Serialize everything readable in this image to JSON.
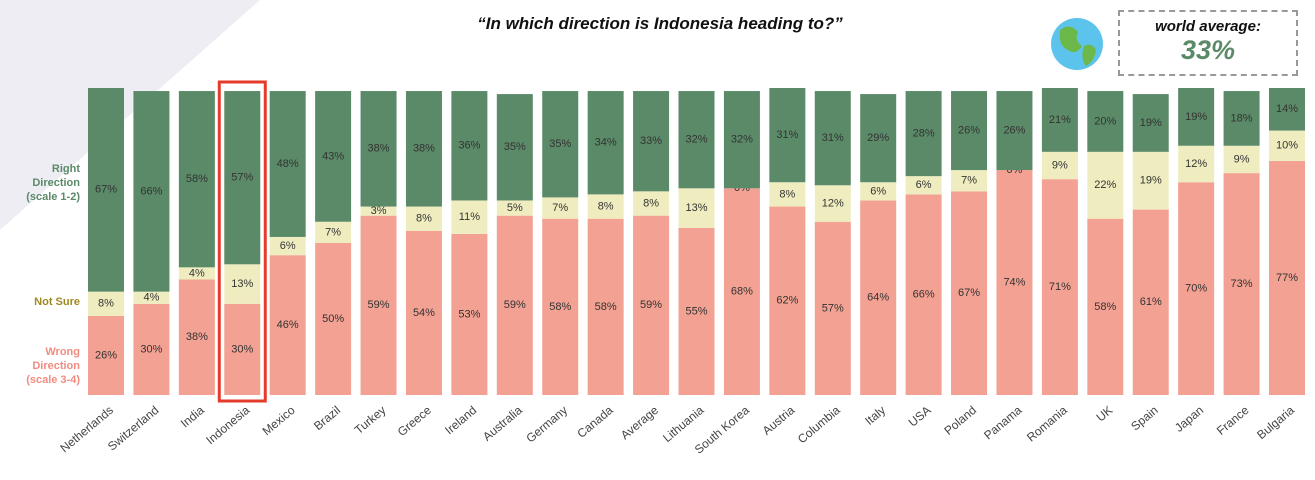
{
  "chart_data": {
    "type": "stacked_bar",
    "title": "“In which direction is Indonesia heading to?”",
    "annotation": {
      "label": "world average:",
      "value": "33%"
    },
    "highlight_category": "Indonesia",
    "categories": [
      "Netherlands",
      "Switzerland",
      "India",
      "Indonesia",
      "Mexico",
      "Brazil",
      "Turkey",
      "Greece",
      "Ireland",
      "Australia",
      "Germany",
      "Canada",
      "Average",
      "Lithuania",
      "South Korea",
      "Austria",
      "Columbia",
      "Italy",
      "USA",
      "Poland",
      "Panama",
      "Romania",
      "UK",
      "Spain",
      "Japan",
      "France",
      "Bulgaria"
    ],
    "series": [
      {
        "name": "Right Direction (scale 1-2)",
        "color": "#5b8a68",
        "values": [
          67,
          66,
          58,
          57,
          48,
          43,
          38,
          38,
          36,
          35,
          35,
          34,
          33,
          32,
          32,
          31,
          31,
          29,
          28,
          26,
          26,
          21,
          20,
          19,
          19,
          18,
          14
        ],
        "value_labels": [
          "67%",
          "66%",
          "58%",
          "57%",
          "48%",
          "43%",
          "38%",
          "38%",
          "36%",
          "35%",
          "35%",
          "34%",
          "33%",
          "32%",
          "32%",
          "31%",
          "31%",
          "29%",
          "28%",
          "26%",
          "26%",
          "21%",
          "20%",
          "19%",
          "19%",
          "18%",
          "14%"
        ]
      },
      {
        "name": "Not Sure",
        "color": "#efedbf",
        "values": [
          8,
          4,
          4,
          13,
          6,
          7,
          3,
          8,
          11,
          5,
          7,
          8,
          8,
          13,
          0,
          8,
          12,
          6,
          6,
          7,
          0,
          9,
          22,
          19,
          12,
          9,
          10
        ],
        "value_labels": [
          "8%",
          "4%",
          "4%",
          "13%",
          "6%",
          "7%",
          "3%",
          "8%",
          "11%",
          "5%",
          "7%",
          "8%",
          "8%",
          "13%",
          "0%",
          "8%",
          "12%",
          "6%",
          "6%",
          "7%",
          "0%",
          "9%",
          "22%",
          "19%",
          "12%",
          "9%",
          "10%"
        ]
      },
      {
        "name": "Wrong Direction (scale 3-4)",
        "color": "#f2a192",
        "values": [
          26,
          30,
          38,
          30,
          46,
          50,
          59,
          54,
          53,
          59,
          58,
          58,
          59,
          55,
          68,
          62,
          57,
          64,
          66,
          67,
          74,
          71,
          58,
          61,
          70,
          73,
          77
        ],
        "value_labels": [
          "26%",
          "30%",
          "38%",
          "30%",
          "46%",
          "50%",
          "59%",
          "54%",
          "53%",
          "59%",
          "58%",
          "58%",
          "59%",
          "55%",
          "68%",
          "62%",
          "57%",
          "64%",
          "66%",
          "67%",
          "74%",
          "71%",
          "58%",
          "61%",
          "70%",
          "73%",
          "77%"
        ]
      }
    ]
  }
}
